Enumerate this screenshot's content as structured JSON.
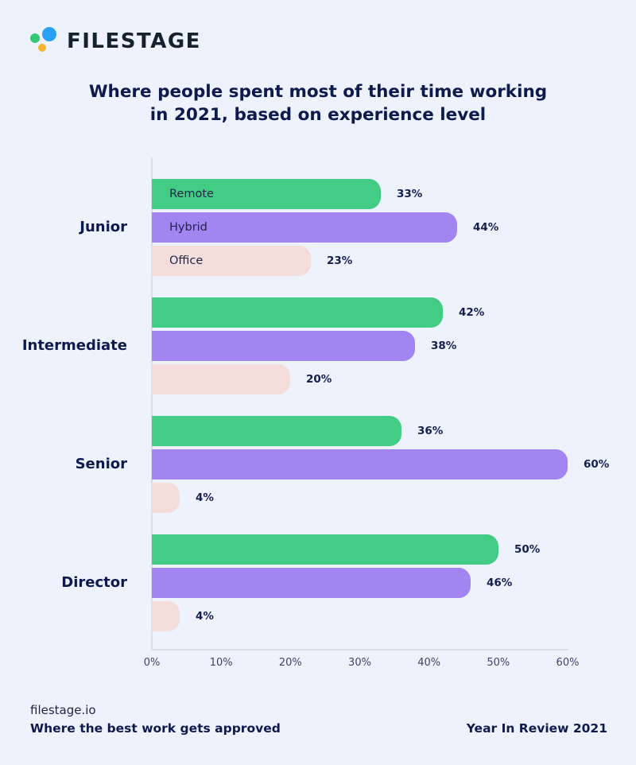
{
  "brand": {
    "logo_text": "FILESTAGE",
    "dot_colors": {
      "green": "#35c971",
      "blue": "#2aa0f4",
      "yellow": "#f8b32c"
    }
  },
  "title": {
    "line1": "Where people spent most of their time working",
    "line2": "in 2021, based on experience level"
  },
  "chart_data": {
    "type": "bar",
    "orientation": "horizontal",
    "title": "Where people spent most of their time working in 2021, based on experience level",
    "categories": [
      "Junior",
      "Intermediate",
      "Senior",
      "Director"
    ],
    "series": [
      {
        "name": "Remote",
        "color": "#42cc84",
        "values": [
          33,
          42,
          36,
          50
        ]
      },
      {
        "name": "Hybrid",
        "color": "#a385f2",
        "values": [
          44,
          38,
          60,
          46
        ]
      },
      {
        "name": "Office",
        "color": "#f5dddb",
        "values": [
          23,
          20,
          4,
          4
        ]
      }
    ],
    "value_suffix": "%",
    "xlim": [
      0,
      60
    ],
    "x_ticks": [
      "0%",
      "10%",
      "20%",
      "30%",
      "40%",
      "50%",
      "60%"
    ],
    "grid": false,
    "legend": "series names shown inside first group's bars",
    "axis_color": "#dcdde8",
    "background_color": "#eef2fc",
    "text_color": "#0d1a4e"
  },
  "footer": {
    "site": "filestage.io",
    "tagline": "Where the best work gets approved",
    "edition": "Year In Review 2021"
  }
}
